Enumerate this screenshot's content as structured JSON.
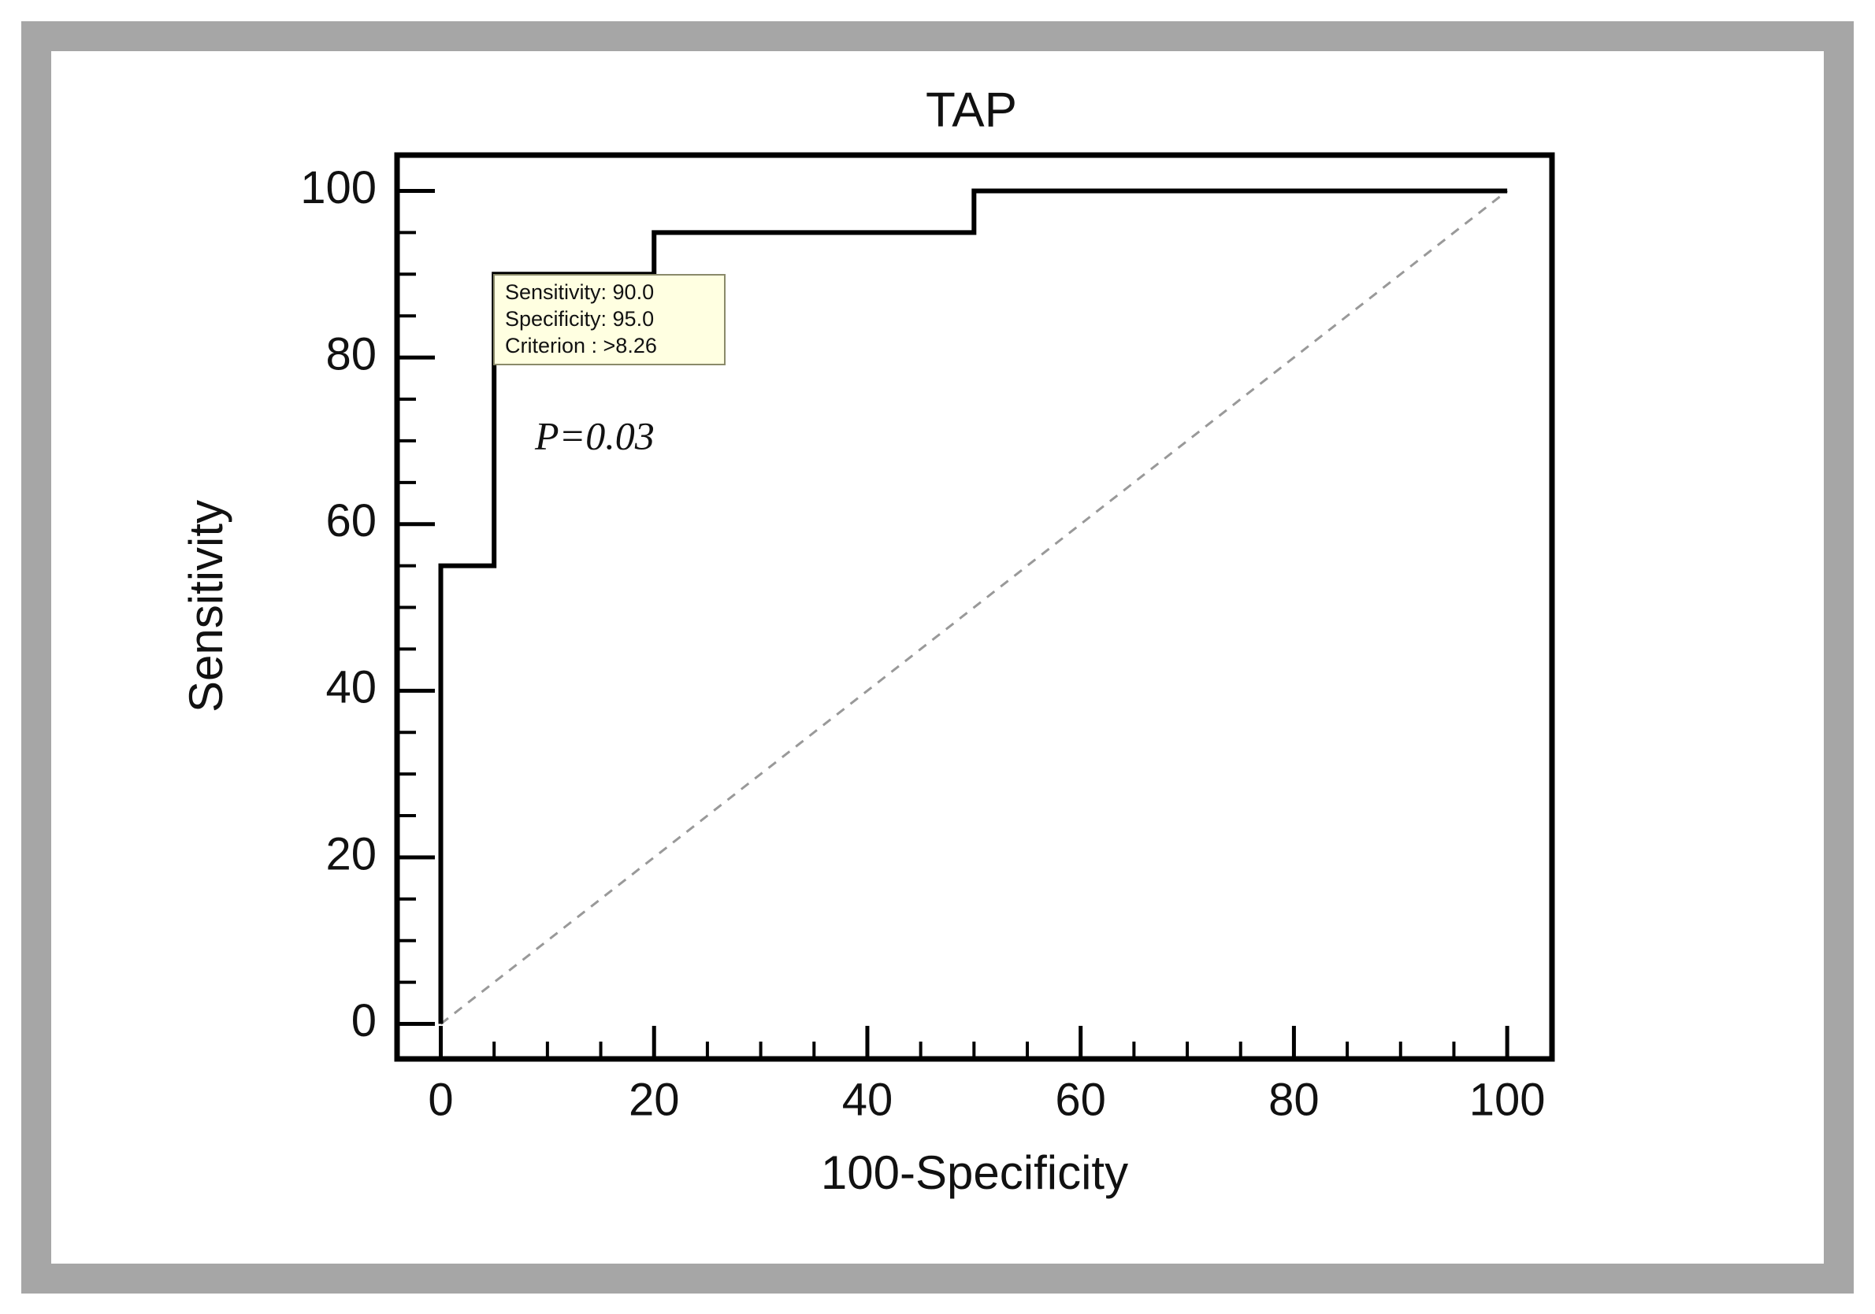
{
  "chart_data": {
    "type": "line",
    "title": "TAP",
    "x_label": "100-Specificity",
    "y_label": "Sensitivity",
    "series": [
      {
        "x": [
          0,
          0,
          5,
          5,
          20,
          20,
          50,
          50,
          100
        ],
        "values": [
          0,
          55,
          55,
          90,
          90,
          95,
          95,
          100,
          100
        ],
        "color": "#000000",
        "style": "solid"
      },
      {
        "x": [
          0,
          100
        ],
        "values": [
          0,
          100
        ],
        "color": "#999999",
        "style": "dashed"
      }
    ],
    "xlim": [
      -4.1,
      104.2
    ],
    "ylim": [
      -4.2,
      104.3
    ],
    "xticks": [
      0,
      20,
      40,
      60,
      80,
      100
    ],
    "yticks": [
      0,
      20,
      40,
      60,
      80,
      100
    ],
    "xminorticks": [
      5,
      10,
      15,
      25,
      30,
      35,
      45,
      50,
      55,
      65,
      70,
      75,
      85,
      90,
      95
    ],
    "yminorticks": [
      5,
      10,
      15,
      25,
      30,
      35,
      45,
      50,
      55,
      65,
      70,
      75,
      85,
      90,
      95
    ],
    "grid": false,
    "tooltip": [
      "Sensitivity: 90.0",
      "Specificity: 95.0",
      "Criterion : >8.26"
    ],
    "annotation": "P=0.03"
  }
}
